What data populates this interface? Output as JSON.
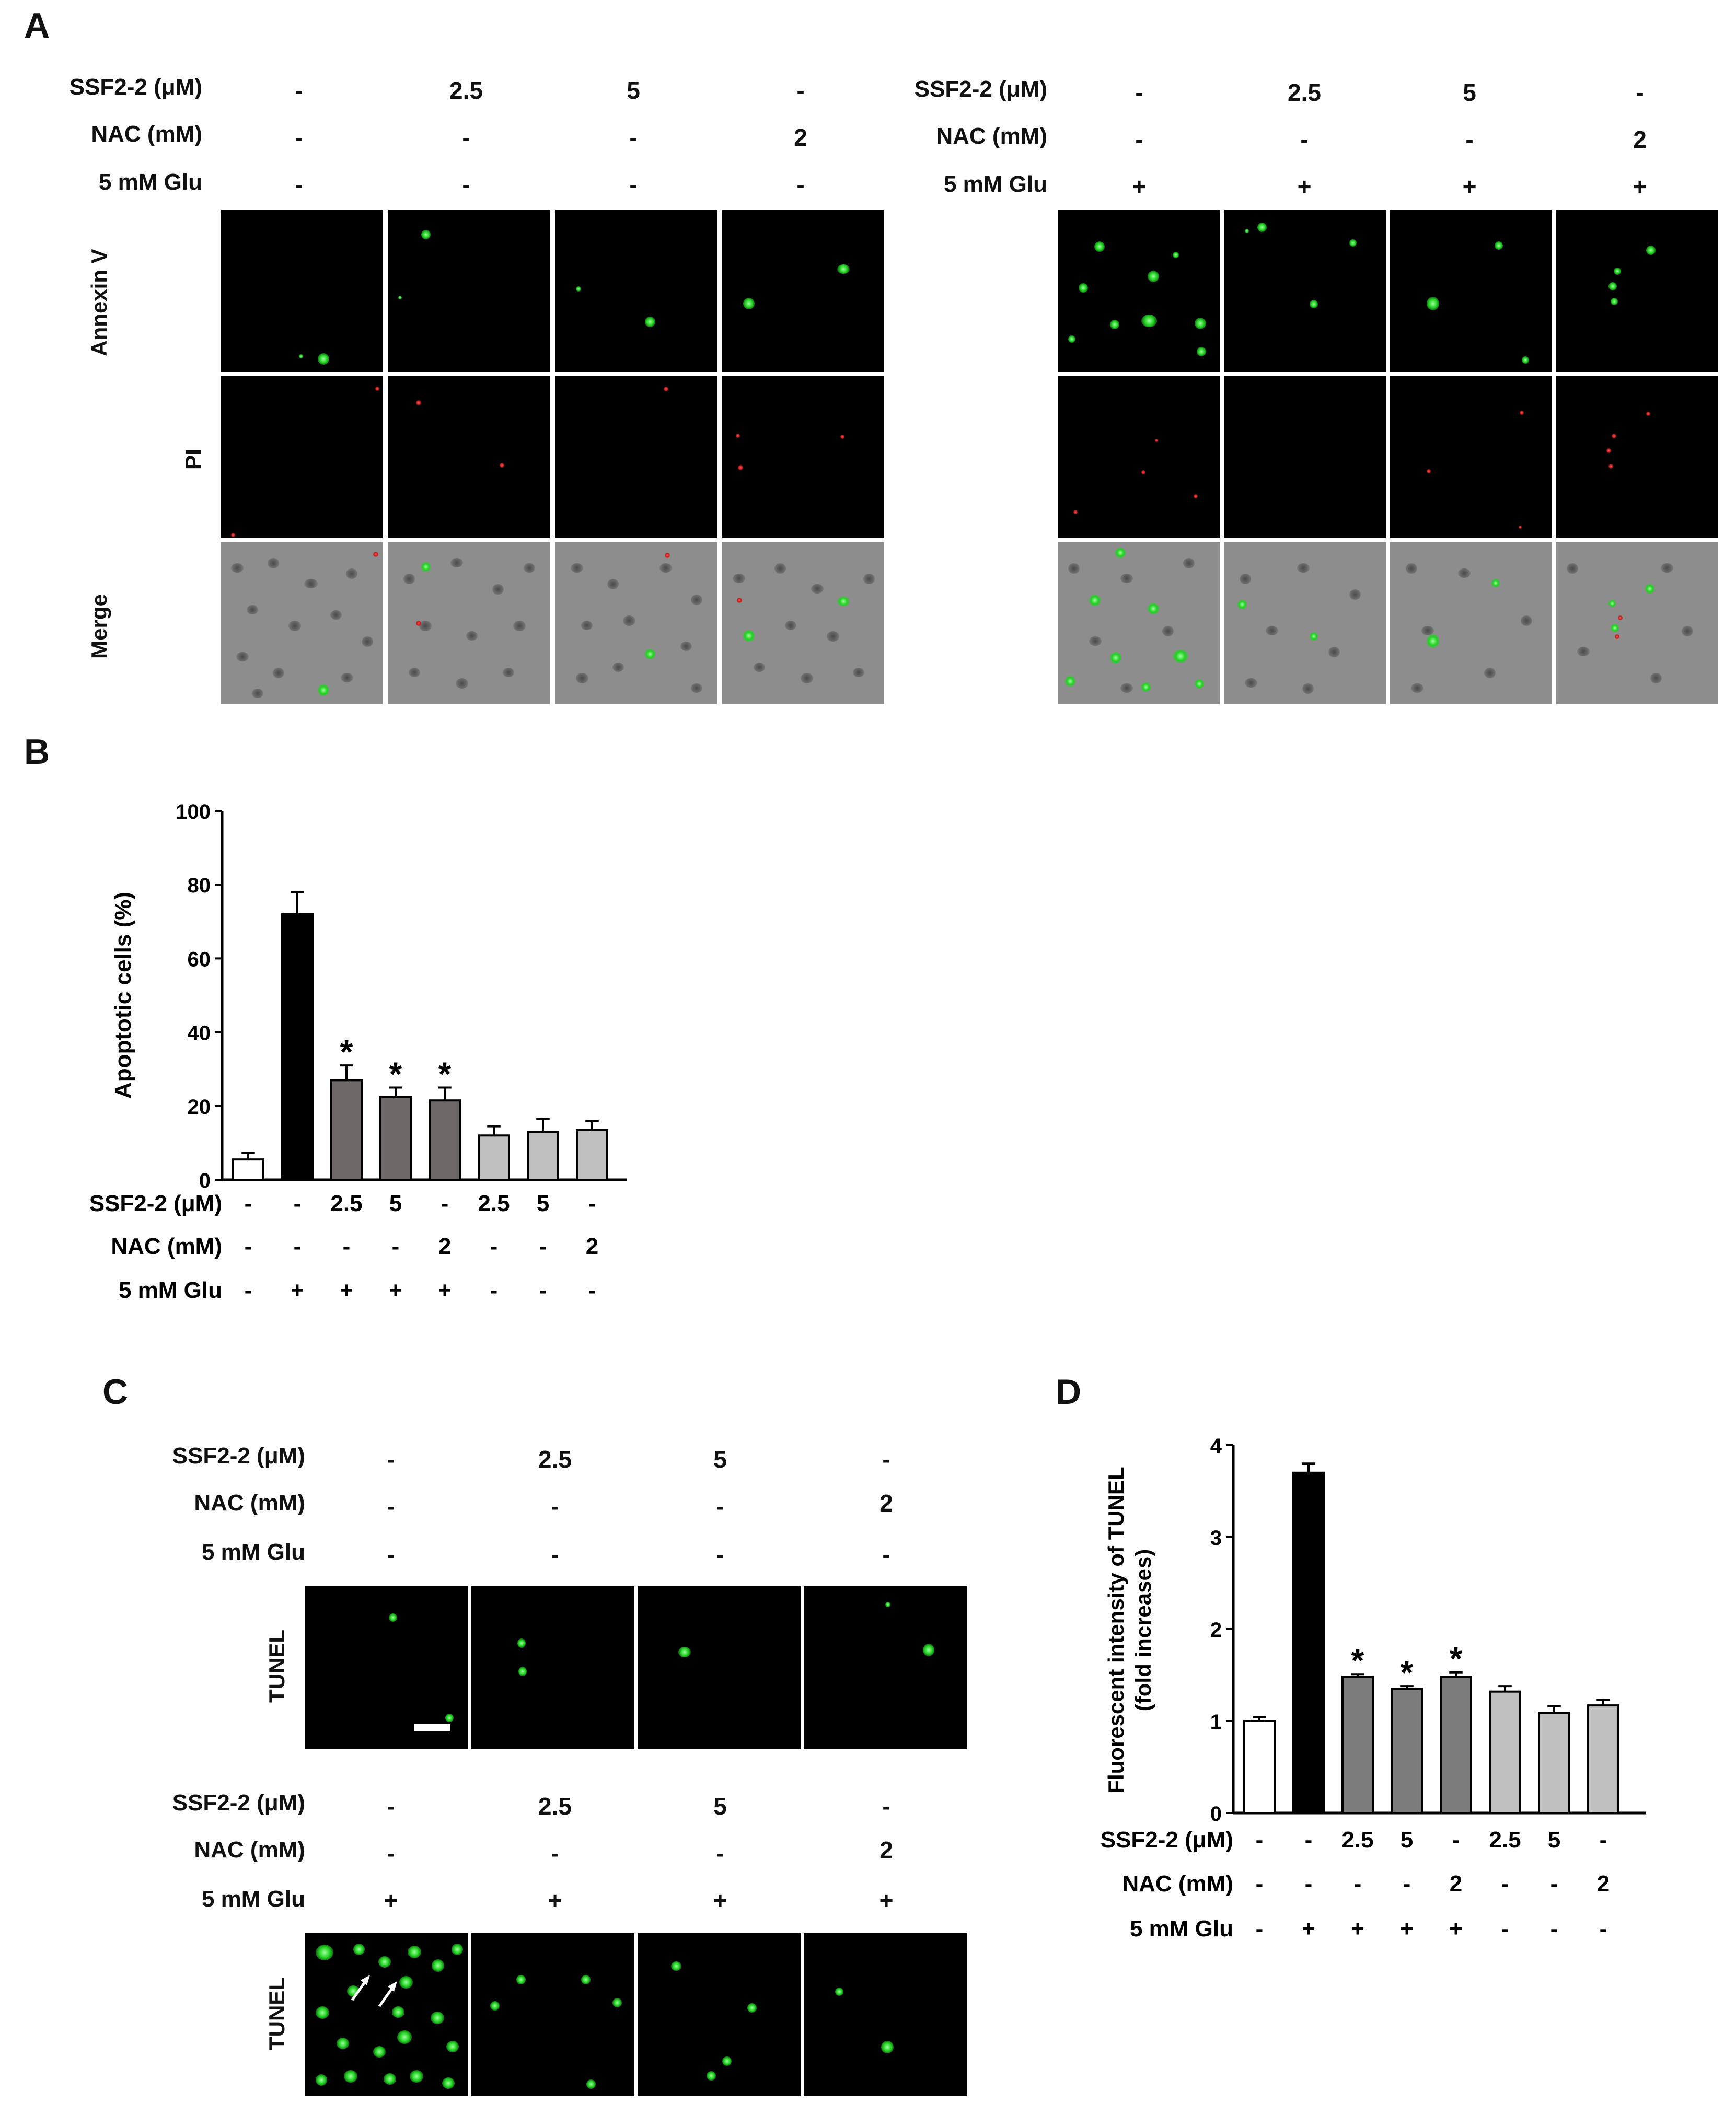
{
  "panel_letters": {
    "a": "A",
    "b": "B",
    "c": "C",
    "d": "D"
  },
  "labels": {
    "ssf": "SSF2-2 (μM)",
    "nac": "NAC (mM)",
    "glu": "5 mM Glu",
    "annexin": "Annexin V",
    "pi": "PI",
    "merge": "Merge",
    "tunel": "TUNEL"
  },
  "panel_a": {
    "left": {
      "ssf": [
        "-",
        "2.5",
        "5",
        "-"
      ],
      "nac": [
        "-",
        "-",
        "-",
        "2"
      ],
      "glu": [
        "-",
        "-",
        "-",
        "-"
      ]
    },
    "right": {
      "ssf": [
        "-",
        "2.5",
        "5",
        "-"
      ],
      "nac": [
        "-",
        "-",
        "-",
        "2"
      ],
      "glu": [
        "+",
        "+",
        "+",
        "+"
      ]
    }
  },
  "panel_c": {
    "top": {
      "ssf": [
        "-",
        "2.5",
        "5",
        "-"
      ],
      "nac": [
        "-",
        "-",
        "-",
        "2"
      ],
      "glu": [
        "-",
        "-",
        "-",
        "-"
      ]
    },
    "bottom": {
      "ssf": [
        "-",
        "2.5",
        "5",
        "-"
      ],
      "nac": [
        "-",
        "-",
        "-",
        "2"
      ],
      "glu": [
        "+",
        "+",
        "+",
        "+"
      ]
    }
  },
  "chart_data": [
    {
      "id": "B",
      "type": "bar",
      "ylabel": "Apoptotic cells (%)",
      "ylim": [
        0,
        100
      ],
      "yticks": [
        "0",
        "20",
        "40",
        "60",
        "80",
        "100"
      ],
      "values": [
        5.5,
        72,
        27,
        22.5,
        21.5,
        12,
        13,
        13.5
      ],
      "errors": [
        1.8,
        6,
        4,
        2.5,
        3.5,
        2.5,
        3.5,
        2.5
      ],
      "significant": [
        false,
        false,
        true,
        true,
        true,
        false,
        false,
        false
      ],
      "star": "*",
      "colors": [
        "#ffffff",
        "#000000",
        "#6e6767",
        "#6e6767",
        "#6e6767",
        "#c0c0c0",
        "#c0c0c0",
        "#c0c0c0"
      ],
      "ssf": [
        "-",
        "-",
        "2.5",
        "5",
        "-",
        "2.5",
        "5",
        "-"
      ],
      "nac": [
        "-",
        "-",
        "-",
        "-",
        "2",
        "-",
        "-",
        "2"
      ],
      "glu": [
        "-",
        "+",
        "+",
        "+",
        "+",
        "-",
        "-",
        "-"
      ]
    },
    {
      "id": "D",
      "type": "bar",
      "ylabel": "Fluorescent intensity of TUNEL",
      "ylabel2": "(fold increases)",
      "ylim": [
        0,
        4
      ],
      "yticks": [
        "0",
        "1",
        "2",
        "3",
        "4"
      ],
      "values": [
        1.0,
        3.7,
        1.48,
        1.35,
        1.48,
        1.32,
        1.09,
        1.17
      ],
      "errors": [
        0.04,
        0.1,
        0.03,
        0.03,
        0.05,
        0.06,
        0.07,
        0.06
      ],
      "significant": [
        false,
        false,
        true,
        true,
        true,
        false,
        false,
        false
      ],
      "star": "*",
      "colors": [
        "#ffffff",
        "#000000",
        "#7c7c7c",
        "#7c7c7c",
        "#7c7c7c",
        "#c0c0c0",
        "#c0c0c0",
        "#c0c0c0"
      ],
      "ssf": [
        "-",
        "-",
        "2.5",
        "5",
        "-",
        "2.5",
        "5",
        "-"
      ],
      "nac": [
        "-",
        "-",
        "-",
        "-",
        "2",
        "-",
        "-",
        "2"
      ],
      "glu": [
        "-",
        "+",
        "+",
        "+",
        "+",
        "-",
        "-",
        "-"
      ]
    }
  ]
}
